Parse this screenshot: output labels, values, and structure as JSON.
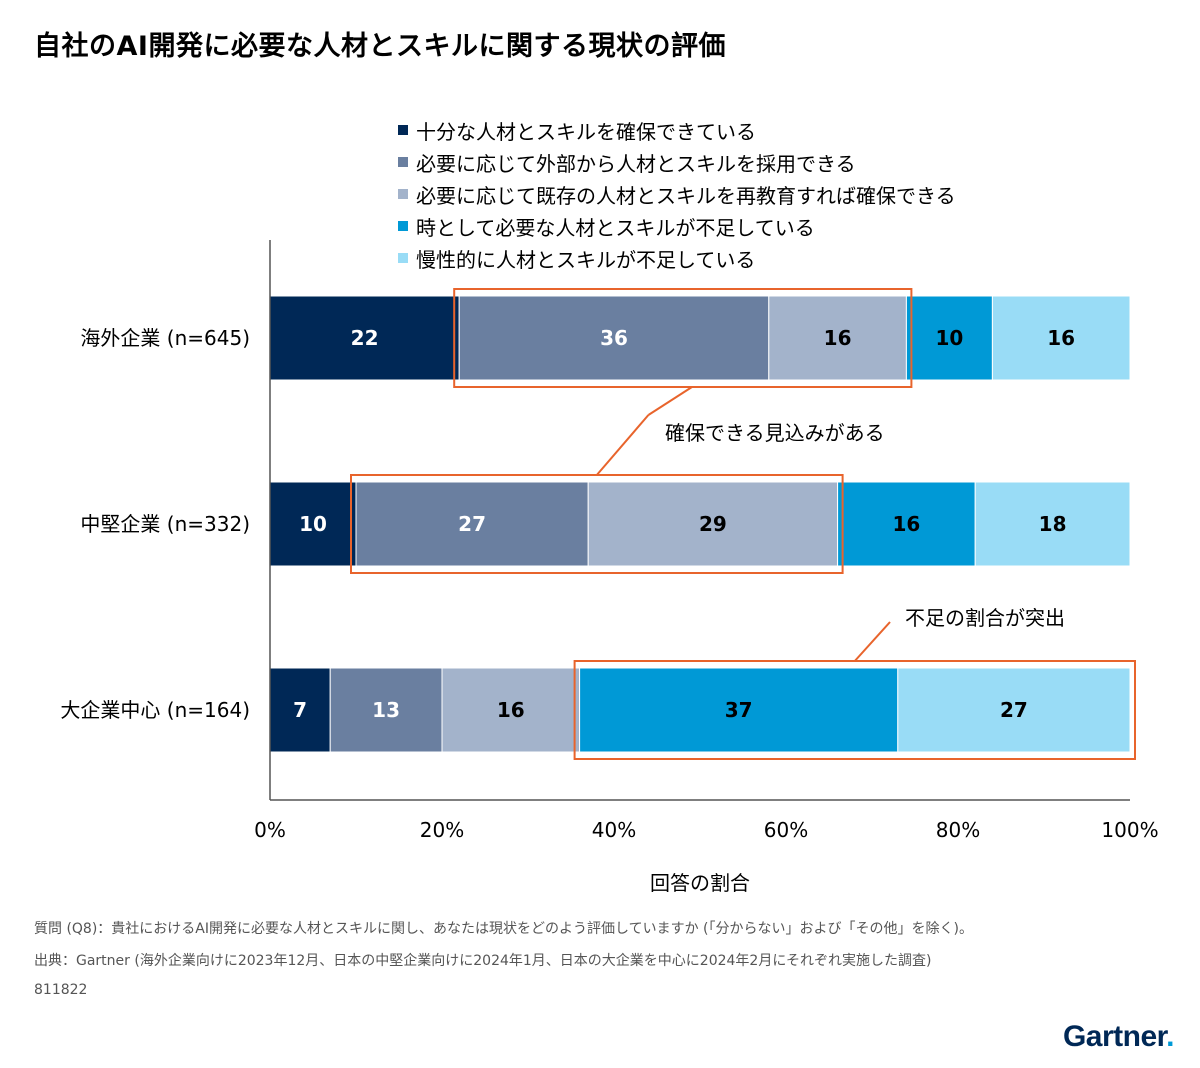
{
  "title": "自社のAI開発に必要な人材とスキルに関する現状の評価",
  "chart_data": {
    "type": "bar",
    "orientation": "horizontal",
    "stacked": true,
    "categories": [
      "海外企業 (n=645)",
      "中堅企業 (n=332)",
      "大企業中心 (n=164)"
    ],
    "series": [
      {
        "name": "十分な人材とスキルを確保できている",
        "color": "#002856",
        "values": [
          22,
          10,
          7
        ]
      },
      {
        "name": "必要に応じて外部から人材とスキルを採用できる",
        "color": "#6a7fa0",
        "values": [
          36,
          27,
          13
        ]
      },
      {
        "name": "必要に応じて既存の人材とスキルを再教育すれば確保できる",
        "color": "#a3b3cb",
        "values": [
          16,
          29,
          16
        ]
      },
      {
        "name": "時として必要な人材とスキルが不足している",
        "color": "#0099d6",
        "values": [
          10,
          16,
          37
        ]
      },
      {
        "name": "慢性的に人材とスキルが不足している",
        "color": "#99dcf6",
        "values": [
          16,
          18,
          27
        ]
      }
    ],
    "data_label_colors": [
      "#ffffff",
      "#ffffff",
      "#000000",
      "#000000",
      "#000000"
    ],
    "xlim": [
      0,
      100
    ],
    "x_ticks": [
      "0%",
      "20%",
      "40%",
      "60%",
      "80%",
      "100%"
    ],
    "xlabel": "回答の割合",
    "grid": false,
    "legend_position": "top",
    "highlight_color": "#e8642c",
    "annotations": [
      {
        "text": "確保できる見込みがある",
        "rows": [
          0,
          1
        ],
        "series_from": 1,
        "series_to": 2
      },
      {
        "text": "不足の割合が突出",
        "rows": [
          2
        ],
        "series_from": 3,
        "series_to": 4
      }
    ]
  },
  "notes": [
    "質問 (Q8)：貴社におけるAI開発に必要な人材とスキルに関し、あなたは現状をどのよう評価していますか (「分からない」および「その他」を除く)。",
    "出典：Gartner (海外企業向けに2023年12月、日本の中堅企業向けに2024年1月、日本の大企業を中心に2024年2月にそれぞれ実施した調査)",
    "811822"
  ],
  "logo": {
    "text": "Gartner",
    "dot": "."
  }
}
